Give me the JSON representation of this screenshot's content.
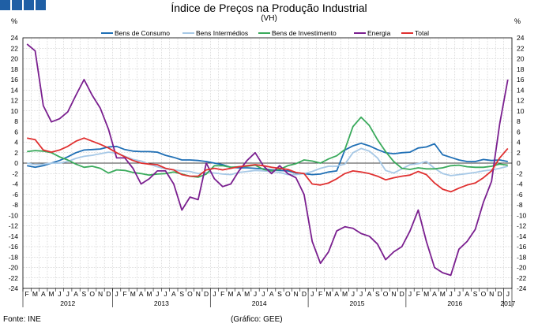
{
  "header": {
    "title": "Índice de Preços na Produção Industrial",
    "subtitle": "(VH)",
    "unit_left": "%",
    "unit_right": "%"
  },
  "footer": {
    "source": "Fonte: INE",
    "credit": "(Gráfico: GEE)"
  },
  "colors": {
    "brand": "#1f5fa5",
    "gridline": "#bfbfbf",
    "axis": "#000000"
  },
  "chart_data": {
    "type": "line",
    "title": "Índice de Preços na Produção Industrial",
    "subtitle": "(VH)",
    "xlabel": "",
    "ylabel": "%",
    "ylim": [
      -24,
      24
    ],
    "yticks": [
      -24,
      -22,
      -20,
      -18,
      -16,
      -14,
      -12,
      -10,
      -8,
      -6,
      -4,
      -2,
      0,
      2,
      4,
      6,
      8,
      10,
      12,
      14,
      16,
      18,
      20,
      22,
      24
    ],
    "grid": true,
    "legend_position": "top",
    "x": [
      "F",
      "M",
      "A",
      "M",
      "J",
      "J",
      "A",
      "S",
      "O",
      "N",
      "D",
      "J",
      "F",
      "M",
      "A",
      "M",
      "J",
      "J",
      "A",
      "S",
      "O",
      "N",
      "D",
      "J",
      "F",
      "M",
      "A",
      "M",
      "J",
      "J",
      "A",
      "S",
      "O",
      "N",
      "D",
      "J",
      "F",
      "M",
      "A",
      "M",
      "J",
      "J",
      "A",
      "S",
      "O",
      "N",
      "D",
      "J",
      "F",
      "M",
      "A",
      "M",
      "J",
      "J",
      "A",
      "S",
      "O",
      "N",
      "D",
      "J"
    ],
    "years": [
      {
        "label": "2012",
        "start": 0,
        "end": 10
      },
      {
        "label": "2013",
        "start": 11,
        "end": 22
      },
      {
        "label": "2014",
        "start": 23,
        "end": 34
      },
      {
        "label": "2015",
        "start": 35,
        "end": 46
      },
      {
        "label": "2016",
        "start": 47,
        "end": 58
      },
      {
        "label": "2017",
        "start": 59,
        "end": 59
      }
    ],
    "series": [
      {
        "name": "Bens de Consumo",
        "color": "#1f6fb5",
        "values": [
          -0.5,
          -0.8,
          -0.5,
          0,
          0.5,
          1.2,
          2,
          2.5,
          2.6,
          2.7,
          3.1,
          3.2,
          2.6,
          2.3,
          2.2,
          2.2,
          2.1,
          1.5,
          1.1,
          0.6,
          0.6,
          0.5,
          0.3,
          0,
          -0.3,
          -0.8,
          -0.9,
          -0.9,
          -1.0,
          -1.1,
          -1.3,
          -1.4,
          -1.5,
          -1.9,
          -2.0,
          -2.2,
          -2.1,
          -1.7,
          -1.5,
          2.5,
          3.3,
          3.8,
          3.3,
          2.6,
          2.0,
          1.8,
          2.0,
          2.1,
          2.9,
          3.1,
          3.7,
          1.6,
          1.1,
          0.6,
          0.3,
          0.3,
          0.7,
          0.5,
          0.6,
          0.3
        ]
      },
      {
        "name": "Bens Intermédios",
        "color": "#a6c8e6",
        "values": [
          0,
          -0.3,
          -0.2,
          0,
          0,
          0.3,
          0.9,
          1.3,
          1.5,
          1.8,
          2.1,
          1.9,
          1.3,
          0.7,
          0.4,
          -0.2,
          -0.7,
          -1.1,
          -1.3,
          -1.5,
          -1.6,
          -2.0,
          -1.8,
          -1.9,
          -2.1,
          -2.2,
          -1.8,
          -1.6,
          -1.4,
          -1.5,
          -1.6,
          -1.8,
          -2.2,
          -2.2,
          -2.0,
          -1.6,
          -1.0,
          -0.6,
          -0.6,
          -0.2,
          2.0,
          2.8,
          2.3,
          1.0,
          -1.4,
          -1.9,
          -1.1,
          -0.3,
          -0.1,
          0.3,
          -1.0,
          -2.0,
          -2.4,
          -2.2,
          -2.0,
          -1.8,
          -1.5,
          -1.3,
          -1.0,
          -0.6
        ]
      },
      {
        "name": "Bens de Investimento",
        "color": "#3aaa5c",
        "values": [
          2.2,
          2.4,
          2.3,
          2.0,
          1.2,
          0.6,
          -0.2,
          -0.8,
          -0.6,
          -1.0,
          -1.9,
          -1.3,
          -1.4,
          -1.8,
          -2.0,
          -2.3,
          -2.1,
          -2.0,
          -1.7,
          -2.1,
          -2.5,
          -2.7,
          -2.1,
          -0.5,
          -0.5,
          -0.8,
          -0.7,
          -0.6,
          -0.4,
          -1.2,
          -1.5,
          -1.2,
          -0.5,
          -0.1,
          0.6,
          0.4,
          0.0,
          0.8,
          1.4,
          2.6,
          7.0,
          8.8,
          7.2,
          4.5,
          2.2,
          0.3,
          -1.0,
          -1.2,
          -0.9,
          -1.1,
          -1.1,
          -0.9,
          -0.5,
          -0.4,
          -0.7,
          -0.8,
          -0.8,
          -0.6,
          -0.2,
          -0.4
        ]
      },
      {
        "name": "Energia",
        "color": "#7a1f8f",
        "values": [
          22.8,
          21.5,
          11.0,
          7.9,
          8.5,
          9.8,
          13.0,
          16.0,
          13.0,
          10.5,
          6.5,
          1.0,
          1.0,
          -1.0,
          -4.0,
          -3.0,
          -1.5,
          -1.5,
          -4.0,
          -9.0,
          -6.5,
          -7.0,
          0.0,
          -3.0,
          -4.5,
          -4.0,
          -1.5,
          0.5,
          2.0,
          -0.5,
          -2.0,
          -0.5,
          -2.0,
          -2.8,
          -6.0,
          -15.0,
          -19.2,
          -17.0,
          -13.0,
          -12.2,
          -12.5,
          -13.5,
          -14.0,
          -15.5,
          -18.5,
          -17.0,
          -16.0,
          -13.0,
          -9.0,
          -15.0,
          -20.0,
          -21.0,
          -21.5,
          -16.5,
          -15.0,
          -12.7,
          -7.5,
          -3.5,
          7.5,
          16.0
        ]
      },
      {
        "name": "Total",
        "color": "#e03030",
        "values": [
          4.8,
          4.5,
          2.5,
          2.1,
          2.5,
          3.2,
          4.2,
          4.8,
          4.2,
          3.6,
          2.9,
          2.0,
          1.2,
          0.5,
          0.0,
          -0.2,
          -0.3,
          -1.0,
          -1.3,
          -2.2,
          -2.5,
          -2.5,
          -1.3,
          -1.0,
          -1.3,
          -1.0,
          -0.7,
          -0.5,
          -0.3,
          -0.5,
          -0.8,
          -1.0,
          -1.2,
          -1.8,
          -2.0,
          -4.0,
          -4.2,
          -3.8,
          -3.0,
          -2.0,
          -1.5,
          -1.7,
          -2.0,
          -2.5,
          -3.2,
          -2.8,
          -2.5,
          -2.3,
          -1.6,
          -2.2,
          -3.8,
          -5.0,
          -5.5,
          -4.8,
          -4.2,
          -3.8,
          -2.8,
          -1.5,
          1.0,
          2.8
        ]
      }
    ]
  }
}
